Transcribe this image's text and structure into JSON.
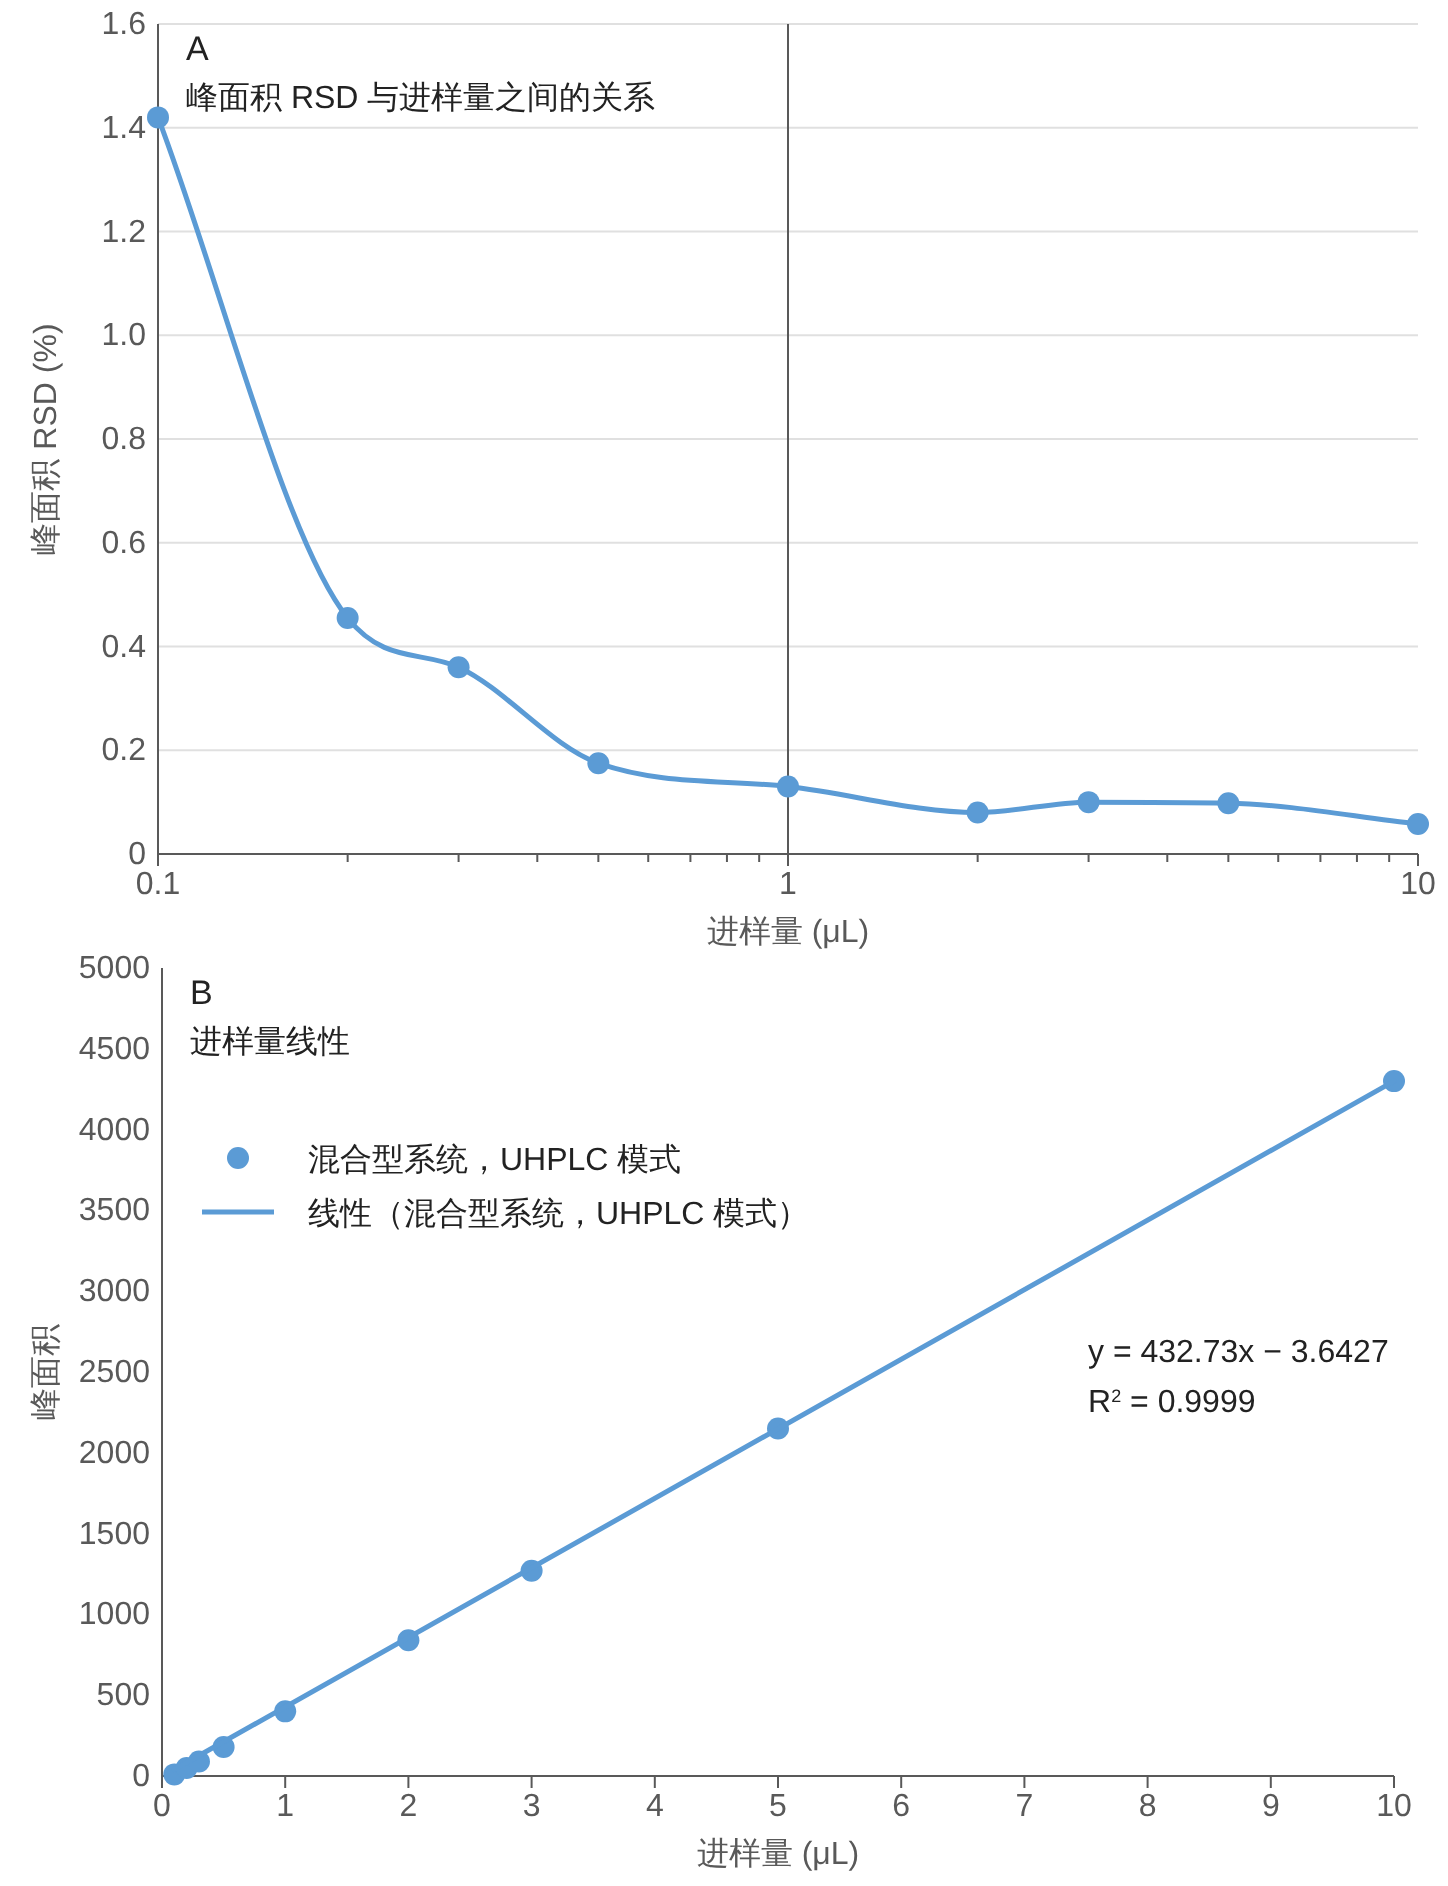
{
  "chart_data": [
    {
      "type": "line",
      "title": "A",
      "subtitle": "峰面积 RSD 与进样量之间的关系",
      "xlabel": "进样量 (μL)",
      "ylabel": "峰面积 RSD (%)",
      "log": "x",
      "x": [
        0.1,
        0.2,
        0.3,
        0.5,
        1,
        2,
        3,
        5,
        10
      ],
      "series": [
        {
          "color": "#5b9bd5",
          "marker": "circle",
          "values": [
            1.42,
            0.455,
            0.36,
            0.175,
            0.13,
            0.08,
            0.1,
            0.098,
            0.058
          ]
        }
      ],
      "xlim": [
        0.1,
        10
      ],
      "ylim": [
        0,
        1.6
      ],
      "xticks": [
        0.1,
        {
          "value": 0.2,
          "label": null
        },
        {
          "value": 0.3,
          "label": null
        },
        {
          "value": 0.4,
          "label": null
        },
        {
          "value": 0.5,
          "label": null
        },
        {
          "value": 0.6,
          "label": null
        },
        {
          "value": 0.7,
          "label": null
        },
        {
          "value": 0.8,
          "label": null
        },
        {
          "value": 0.9,
          "label": null
        },
        1,
        {
          "value": 2,
          "label": null
        },
        {
          "value": 3,
          "label": null
        },
        {
          "value": 4,
          "label": null
        },
        {
          "value": 5,
          "label": null
        },
        {
          "value": 6,
          "label": null
        },
        {
          "value": 7,
          "label": null
        },
        {
          "value": 8,
          "label": null
        },
        {
          "value": 9,
          "label": null
        },
        10
      ],
      "yticks": [
        0,
        0.2,
        0.4,
        0.6,
        0.8,
        {
          "value": 1,
          "label": "1.0"
        },
        1.2,
        1.4,
        1.6
      ],
      "grid": "y",
      "ref_lines": [
        {
          "axis": "x",
          "value": 1,
          "color": "#595959"
        }
      ]
    },
    {
      "type": "scatter",
      "title": "B",
      "subtitle": "进样量线性",
      "xlabel": "进样量 (μL)",
      "ylabel": "峰面积",
      "x": [
        0.1,
        0.2,
        0.3,
        0.5,
        1,
        2,
        3,
        5,
        10
      ],
      "series": [
        {
          "name": "混合型系统，UHPLC 模式",
          "color": "#5b9bd5",
          "marker": "circle",
          "values": [
            10,
            50,
            90,
            180,
            400,
            840,
            1270,
            2150,
            4300
          ]
        },
        {
          "name": "线性（混合型系统，UHPLC 模式）",
          "type": "line",
          "color": "#5b9bd5",
          "x": [
            0.1,
            10
          ],
          "values": [
            40,
            4300
          ]
        }
      ],
      "xlim": [
        0,
        10
      ],
      "ylim": [
        0,
        5000
      ],
      "xticks": [
        0,
        1,
        2,
        3,
        4,
        5,
        6,
        7,
        8,
        9,
        10
      ],
      "yticks": [
        0,
        500,
        1000,
        1500,
        2000,
        2500,
        3000,
        3500,
        4000,
        4500,
        5000
      ],
      "legend": "top left",
      "annotations": [
        "y = 432.73x − 3.6427",
        "R$^{2}$ = 0.9999"
      ]
    }
  ]
}
